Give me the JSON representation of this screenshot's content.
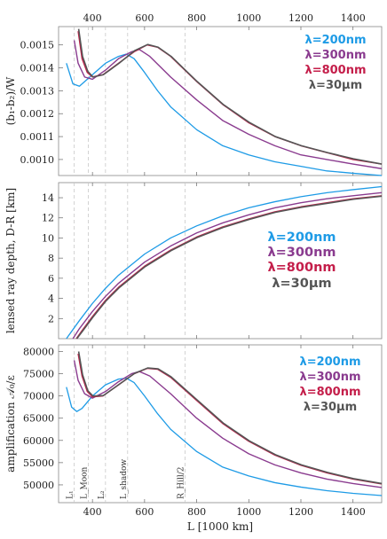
{
  "chart_data": [
    {
      "type": "line",
      "ylabel": "(b₁-b₂)/W",
      "xlim": [
        270,
        1510
      ],
      "ylim": [
        0.00093,
        0.00158
      ],
      "x_ticks": [
        400,
        600,
        800,
        1000,
        1200,
        1400
      ],
      "x_tick_labels": [
        "400",
        "600",
        "800",
        "1000",
        "1200",
        "1400"
      ],
      "x_tick_labels_position": "top",
      "y_ticks": [
        0.001,
        0.0011,
        0.0012,
        0.0013,
        0.0014,
        0.0015
      ],
      "y_tick_labels": [
        "0.0010",
        "0.0011",
        "0.0012",
        "0.0013",
        "0.0014",
        "0.0015"
      ],
      "legend_placement": "top-right",
      "grid": false,
      "series": [
        {
          "name": "λ=200nm",
          "color": "#1e9be6",
          "x": [
            300,
            325,
            350,
            400,
            450,
            500,
            530,
            560,
            600,
            650,
            700,
            800,
            900,
            1000,
            1100,
            1200,
            1300,
            1400,
            1510
          ],
          "y": [
            0.00142,
            0.00133,
            0.00132,
            0.00137,
            0.00142,
            0.00145,
            0.00146,
            0.00144,
            0.00138,
            0.0013,
            0.00123,
            0.00113,
            0.00106,
            0.00102,
            0.00099,
            0.00097,
            0.00095,
            0.00094,
            0.00093
          ]
        },
        {
          "name": "λ=300nm",
          "color": "#8a3b8f",
          "x": [
            330,
            345,
            370,
            400,
            450,
            500,
            550,
            580,
            620,
            700,
            800,
            900,
            1000,
            1100,
            1200,
            1300,
            1400,
            1510
          ],
          "y": [
            0.00152,
            0.00142,
            0.00136,
            0.00135,
            0.00139,
            0.00144,
            0.00147,
            0.00148,
            0.00145,
            0.00136,
            0.00126,
            0.00117,
            0.00111,
            0.00106,
            0.00102,
            0.001,
            0.00098,
            0.00096
          ]
        },
        {
          "name": "λ=800nm",
          "color": "#c41e4a",
          "x": [
            345,
            360,
            380,
            400,
            440,
            500,
            560,
            610,
            650,
            700,
            800,
            900,
            1000,
            1100,
            1200,
            1300,
            1400,
            1510
          ],
          "y": [
            0.00156,
            0.00144,
            0.00138,
            0.00136,
            0.00137,
            0.00142,
            0.00147,
            0.0015,
            0.00149,
            0.00145,
            0.00134,
            0.00124,
            0.00116,
            0.0011,
            0.00106,
            0.00103,
            0.001,
            0.00098
          ]
        },
        {
          "name": "λ=30μm",
          "color": "#555555",
          "x": [
            347,
            362,
            382,
            402,
            442,
            502,
            562,
            612,
            652,
            702,
            802,
            902,
            1002,
            1102,
            1202,
            1302,
            1402,
            1510
          ],
          "y": [
            0.00157,
            0.00145,
            0.001385,
            0.00136,
            0.00137,
            0.00142,
            0.001475,
            0.001502,
            0.00149,
            0.00145,
            0.00134,
            0.00124,
            0.001162,
            0.0011,
            0.00106,
            0.00103,
            0.001003,
            0.00098
          ]
        }
      ]
    },
    {
      "type": "line",
      "ylabel": "lensed ray depth, D-R [km]",
      "xlim": [
        270,
        1510
      ],
      "ylim": [
        0,
        15.5
      ],
      "y_ticks": [
        2,
        4,
        6,
        8,
        10,
        12,
        14
      ],
      "y_tick_labels": [
        "2",
        "4",
        "6",
        "8",
        "10",
        "12",
        "14"
      ],
      "legend_placement": "center-right",
      "grid": false,
      "series": [
        {
          "name": "λ=200nm",
          "color": "#1e9be6",
          "x": [
            300,
            350,
            400,
            450,
            500,
            600,
            700,
            800,
            900,
            1000,
            1100,
            1200,
            1300,
            1400,
            1510
          ],
          "y": [
            0.0,
            1.8,
            3.5,
            5.0,
            6.3,
            8.4,
            10.0,
            11.2,
            12.2,
            13.0,
            13.6,
            14.1,
            14.5,
            14.8,
            15.1
          ]
        },
        {
          "name": "λ=300nm",
          "color": "#8a3b8f",
          "x": [
            325,
            350,
            400,
            450,
            500,
            600,
            700,
            800,
            900,
            1000,
            1100,
            1200,
            1300,
            1400,
            1510
          ],
          "y": [
            0.0,
            1.0,
            2.7,
            4.2,
            5.5,
            7.6,
            9.2,
            10.5,
            11.5,
            12.3,
            13.0,
            13.5,
            13.9,
            14.2,
            14.5
          ]
        },
        {
          "name": "λ=800nm",
          "color": "#c41e4a",
          "x": [
            338,
            360,
            400,
            450,
            500,
            600,
            700,
            800,
            900,
            1000,
            1100,
            1200,
            1300,
            1400,
            1510
          ],
          "y": [
            0.0,
            0.8,
            2.2,
            3.8,
            5.1,
            7.2,
            8.8,
            10.1,
            11.1,
            11.9,
            12.6,
            13.1,
            13.5,
            13.9,
            14.2
          ]
        },
        {
          "name": "λ=30μm",
          "color": "#555555",
          "x": [
            340,
            362,
            402,
            452,
            502,
            602,
            702,
            802,
            902,
            1002,
            1102,
            1202,
            1302,
            1402,
            1510
          ],
          "y": [
            0.0,
            0.75,
            2.15,
            3.75,
            5.05,
            7.15,
            8.75,
            10.05,
            11.05,
            11.85,
            12.55,
            13.05,
            13.45,
            13.85,
            14.15
          ]
        }
      ]
    },
    {
      "type": "line",
      "ylabel": "amplification 𝒜₀/ε",
      "xlabel": "L [1000 km]",
      "xlim": [
        270,
        1510
      ],
      "ylim": [
        46000,
        81500
      ],
      "x_ticks": [
        400,
        600,
        800,
        1000,
        1200,
        1400
      ],
      "x_tick_labels": [
        "400",
        "600",
        "800",
        "1000",
        "1200",
        "1400"
      ],
      "y_ticks": [
        50000,
        55000,
        60000,
        65000,
        70000,
        75000,
        80000
      ],
      "y_tick_labels": [
        "50000",
        "55000",
        "60000",
        "65000",
        "70000",
        "75000",
        "80000"
      ],
      "legend_placement": "top-right",
      "grid": false,
      "series": [
        {
          "name": "λ=200nm",
          "color": "#1e9be6",
          "x": [
            300,
            320,
            340,
            360,
            400,
            450,
            500,
            530,
            560,
            600,
            650,
            700,
            800,
            900,
            1000,
            1100,
            1200,
            1300,
            1400,
            1510
          ],
          "y": [
            72000,
            67500,
            66500,
            67200,
            70000,
            72500,
            73800,
            74000,
            73000,
            70000,
            66000,
            62500,
            57500,
            54000,
            52000,
            50500,
            49500,
            48700,
            48100,
            47600
          ]
        },
        {
          "name": "λ=300nm",
          "color": "#8a3b8f",
          "x": [
            330,
            345,
            370,
            400,
            450,
            500,
            550,
            580,
            620,
            700,
            800,
            900,
            1000,
            1100,
            1200,
            1300,
            1400,
            1510
          ],
          "y": [
            78000,
            73500,
            70500,
            69500,
            71000,
            73200,
            75000,
            75500,
            74500,
            70500,
            65000,
            60500,
            57000,
            54500,
            52700,
            51300,
            50300,
            49400
          ]
        },
        {
          "name": "λ=800nm",
          "color": "#c41e4a",
          "x": [
            345,
            360,
            380,
            400,
            440,
            500,
            560,
            610,
            650,
            700,
            800,
            900,
            1000,
            1100,
            1200,
            1300,
            1400,
            1510
          ],
          "y": [
            79500,
            74500,
            71000,
            69800,
            70000,
            72500,
            75000,
            76200,
            76000,
            74200,
            69000,
            63800,
            59800,
            56700,
            54400,
            52700,
            51300,
            50200
          ]
        },
        {
          "name": "λ=30μm",
          "color": "#555555",
          "x": [
            347,
            362,
            382,
            402,
            442,
            502,
            562,
            612,
            652,
            702,
            802,
            902,
            1002,
            1102,
            1202,
            1302,
            1402,
            1510
          ],
          "y": [
            80000,
            74800,
            71200,
            70000,
            70100,
            72600,
            75100,
            76300,
            76100,
            74300,
            69100,
            63900,
            59900,
            56800,
            54500,
            52800,
            51400,
            50300
          ]
        }
      ],
      "vertical_markers": [
        {
          "x": 330,
          "label": "L₁"
        },
        {
          "x": 384,
          "label": "L_Moon"
        },
        {
          "x": 450,
          "label": "L₂"
        },
        {
          "x": 535,
          "label": "L_shadow"
        },
        {
          "x": 755,
          "label": "R_Hill/2"
        }
      ]
    }
  ]
}
